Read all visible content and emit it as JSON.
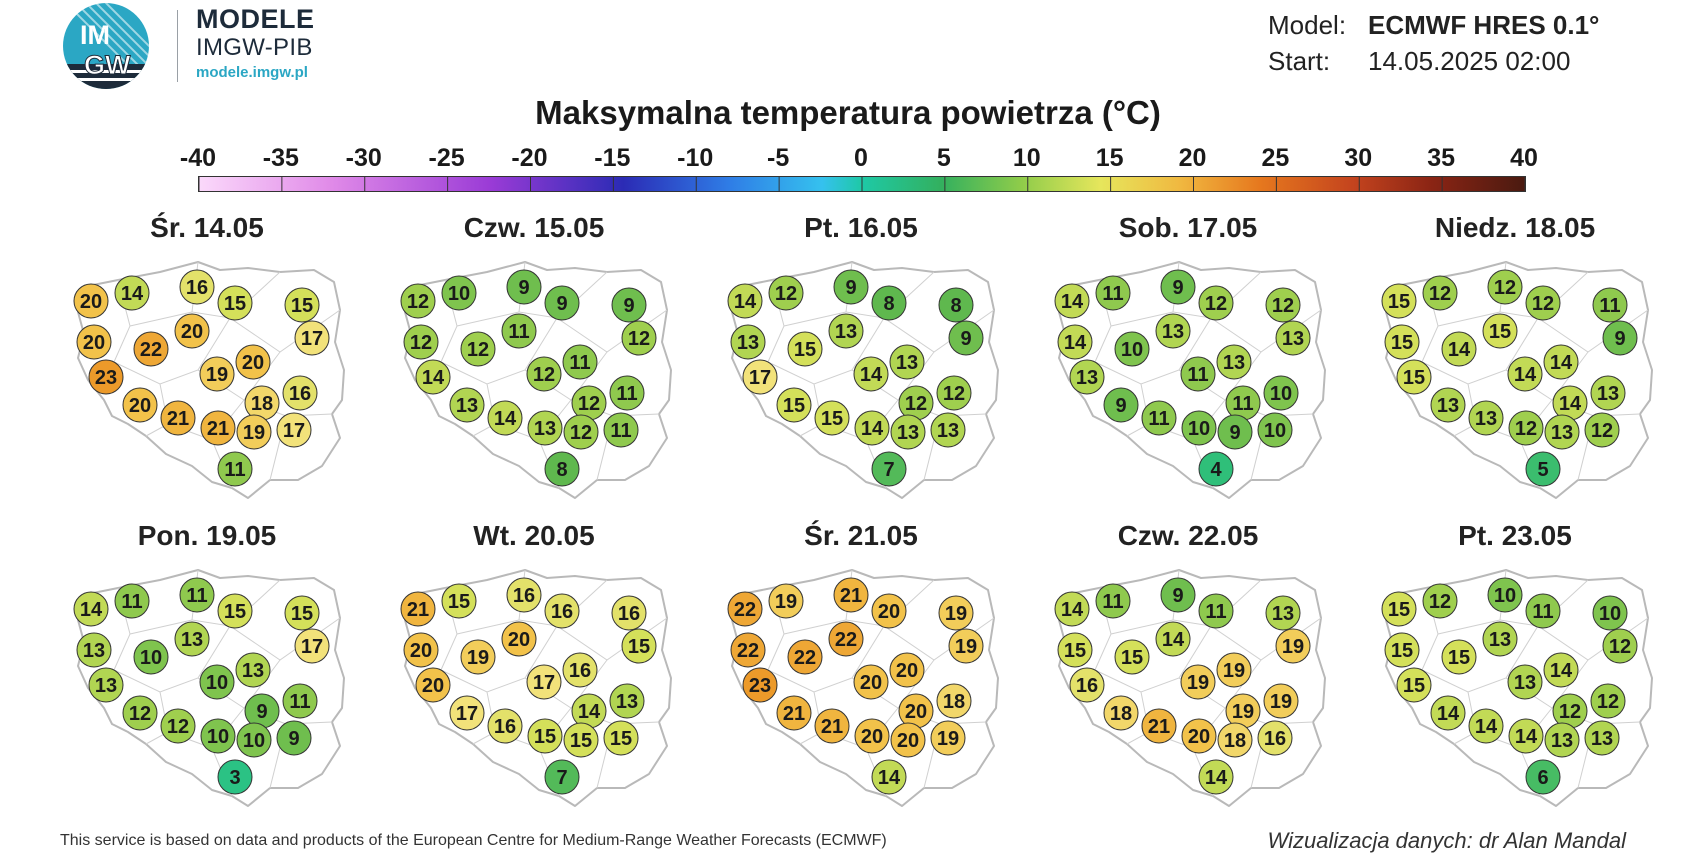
{
  "header": {
    "logo_text_top": "IM",
    "logo_text_bottom": "GW",
    "brand_title": "MODELE",
    "brand_subtitle": "IMGW-PIB",
    "brand_url": "modele.imgw.pl",
    "model_label": "Model:",
    "model_value": "ECMWF HRES 0.1°",
    "start_label": "Start:",
    "start_value": "14.05.2025 02:00"
  },
  "title": "Maksymalna temperatura powietrza (°C)",
  "colorbar": {
    "labels": [
      "-40",
      "-35",
      "-30",
      "-25",
      "-20",
      "-15",
      "-10",
      "-5",
      "0",
      "5",
      "10",
      "15",
      "20",
      "25",
      "30",
      "35",
      "40"
    ],
    "min": -40,
    "max": 40
  },
  "days": [
    {
      "title": "Śr. 14.05",
      "values": [
        20,
        14,
        16,
        15,
        15,
        17,
        20,
        22,
        20,
        20,
        23,
        19,
        18,
        16,
        20,
        21,
        21,
        19,
        17,
        11
      ]
    },
    {
      "title": "Czw. 15.05",
      "values": [
        12,
        10,
        9,
        9,
        9,
        12,
        12,
        12,
        11,
        11,
        14,
        12,
        12,
        11,
        13,
        14,
        13,
        12,
        11,
        8
      ]
    },
    {
      "title": "Pt. 16.05",
      "values": [
        14,
        12,
        9,
        8,
        8,
        9,
        13,
        15,
        13,
        13,
        17,
        14,
        12,
        12,
        15,
        15,
        14,
        13,
        13,
        7
      ]
    },
    {
      "title": "Sob. 17.05",
      "values": [
        14,
        11,
        9,
        12,
        12,
        13,
        14,
        10,
        13,
        13,
        13,
        11,
        11,
        10,
        9,
        11,
        10,
        9,
        10,
        4
      ]
    },
    {
      "title": "Niedz. 18.05",
      "values": [
        15,
        12,
        12,
        12,
        11,
        9,
        15,
        14,
        15,
        14,
        15,
        14,
        14,
        13,
        13,
        13,
        12,
        13,
        12,
        5
      ]
    },
    {
      "title": "Pon. 19.05",
      "values": [
        14,
        11,
        11,
        15,
        15,
        17,
        13,
        10,
        13,
        13,
        13,
        10,
        9,
        11,
        12,
        12,
        10,
        10,
        9,
        3
      ]
    },
    {
      "title": "Wt. 20.05",
      "values": [
        21,
        15,
        16,
        16,
        16,
        15,
        20,
        19,
        20,
        16,
        20,
        17,
        14,
        13,
        17,
        16,
        15,
        15,
        15,
        7
      ]
    },
    {
      "title": "Śr. 21.05",
      "values": [
        22,
        19,
        21,
        20,
        19,
        19,
        22,
        22,
        22,
        20,
        23,
        20,
        20,
        18,
        21,
        21,
        20,
        20,
        19,
        14
      ]
    },
    {
      "title": "Czw. 22.05",
      "values": [
        14,
        11,
        9,
        11,
        13,
        19,
        15,
        15,
        14,
        19,
        16,
        19,
        19,
        19,
        18,
        21,
        20,
        18,
        16,
        14
      ]
    },
    {
      "title": "Pt. 23.05",
      "values": [
        15,
        12,
        10,
        11,
        10,
        12,
        15,
        15,
        13,
        14,
        15,
        13,
        12,
        12,
        14,
        14,
        14,
        13,
        13,
        6
      ]
    }
  ],
  "footer": {
    "source": "This service is based on data and products of the European Centre for Medium-Range Weather Forecasts (ECMWF)",
    "credit": "Wizualizacja danych: dr Alan Mandal"
  }
}
